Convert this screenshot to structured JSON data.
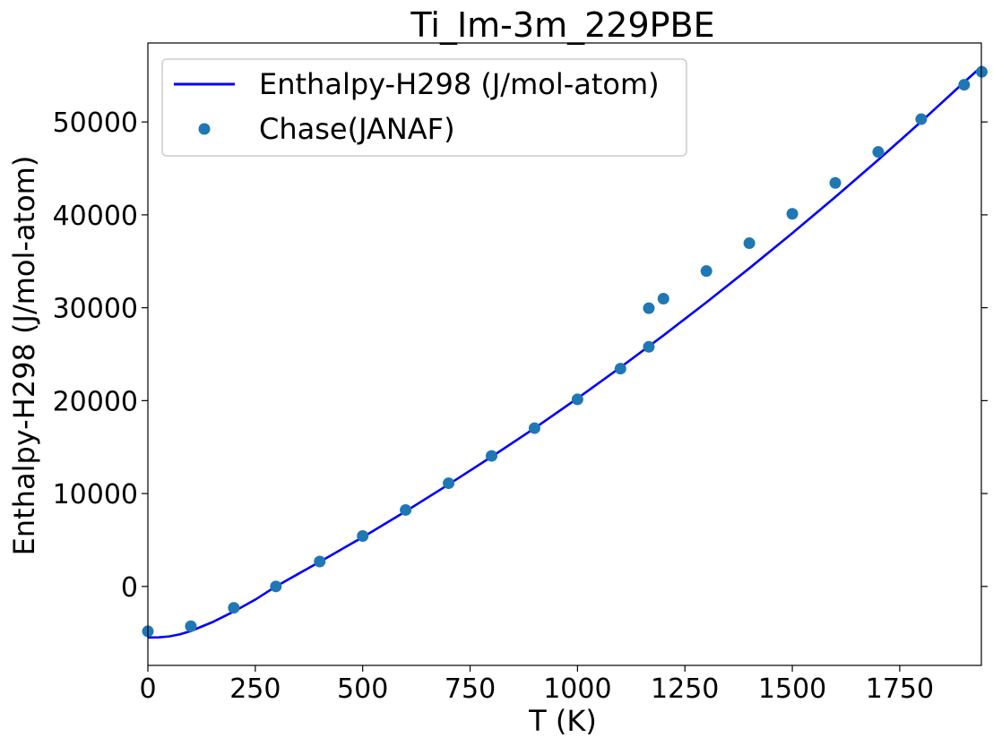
{
  "chart_data": {
    "type": "line",
    "title": "Ti_Im-3m_229PBE",
    "xlabel": "T (K)",
    "ylabel": "Enthalpy-H298 (J/mol-atom)",
    "xlim": [
      0,
      1940
    ],
    "ylim": [
      -8500,
      58500
    ],
    "xticks": [
      0,
      250,
      500,
      750,
      1000,
      1250,
      1500,
      1750
    ],
    "xtick_labels": [
      "0",
      "250",
      "500",
      "750",
      "1000",
      "1250",
      "1500",
      "1750"
    ],
    "yticks": [
      0,
      10000,
      20000,
      30000,
      40000,
      50000
    ],
    "ytick_labels": [
      "0",
      "10000",
      "20000",
      "30000",
      "40000",
      "50000"
    ],
    "grid": false,
    "legend_position": "top-left",
    "series": [
      {
        "name": "Enthalpy-H298 (J/mol-atom)",
        "kind": "line",
        "color": "#0000ff",
        "x": [
          0,
          25,
          50,
          75,
          100,
          150,
          200,
          250,
          298,
          350,
          400,
          500,
          600,
          700,
          800,
          900,
          1000,
          1100,
          1200,
          1300,
          1400,
          1500,
          1600,
          1700,
          1800,
          1900,
          1940
        ],
        "y": [
          -5500,
          -5480,
          -5380,
          -5150,
          -4800,
          -3850,
          -2700,
          -1420,
          0,
          1350,
          2650,
          5300,
          8080,
          10980,
          13960,
          17030,
          20250,
          23580,
          27020,
          30580,
          34250,
          38030,
          41920,
          45920,
          50040,
          54280,
          55950
        ]
      },
      {
        "name": "Chase(JANAF)",
        "kind": "scatter",
        "color": "#1f77b4",
        "x": [
          0,
          100,
          200,
          298,
          400,
          500,
          600,
          700,
          800,
          900,
          1000,
          1100,
          1166,
          1166,
          1200,
          1300,
          1400,
          1500,
          1600,
          1700,
          1800,
          1900,
          1941
        ],
        "y": [
          -4830,
          -4280,
          -2300,
          0,
          2680,
          5430,
          8230,
          11110,
          14050,
          17040,
          20140,
          23440,
          25790,
          29950,
          30980,
          33950,
          36950,
          40110,
          43440,
          46770,
          50300,
          54000,
          55400
        ]
      }
    ]
  }
}
